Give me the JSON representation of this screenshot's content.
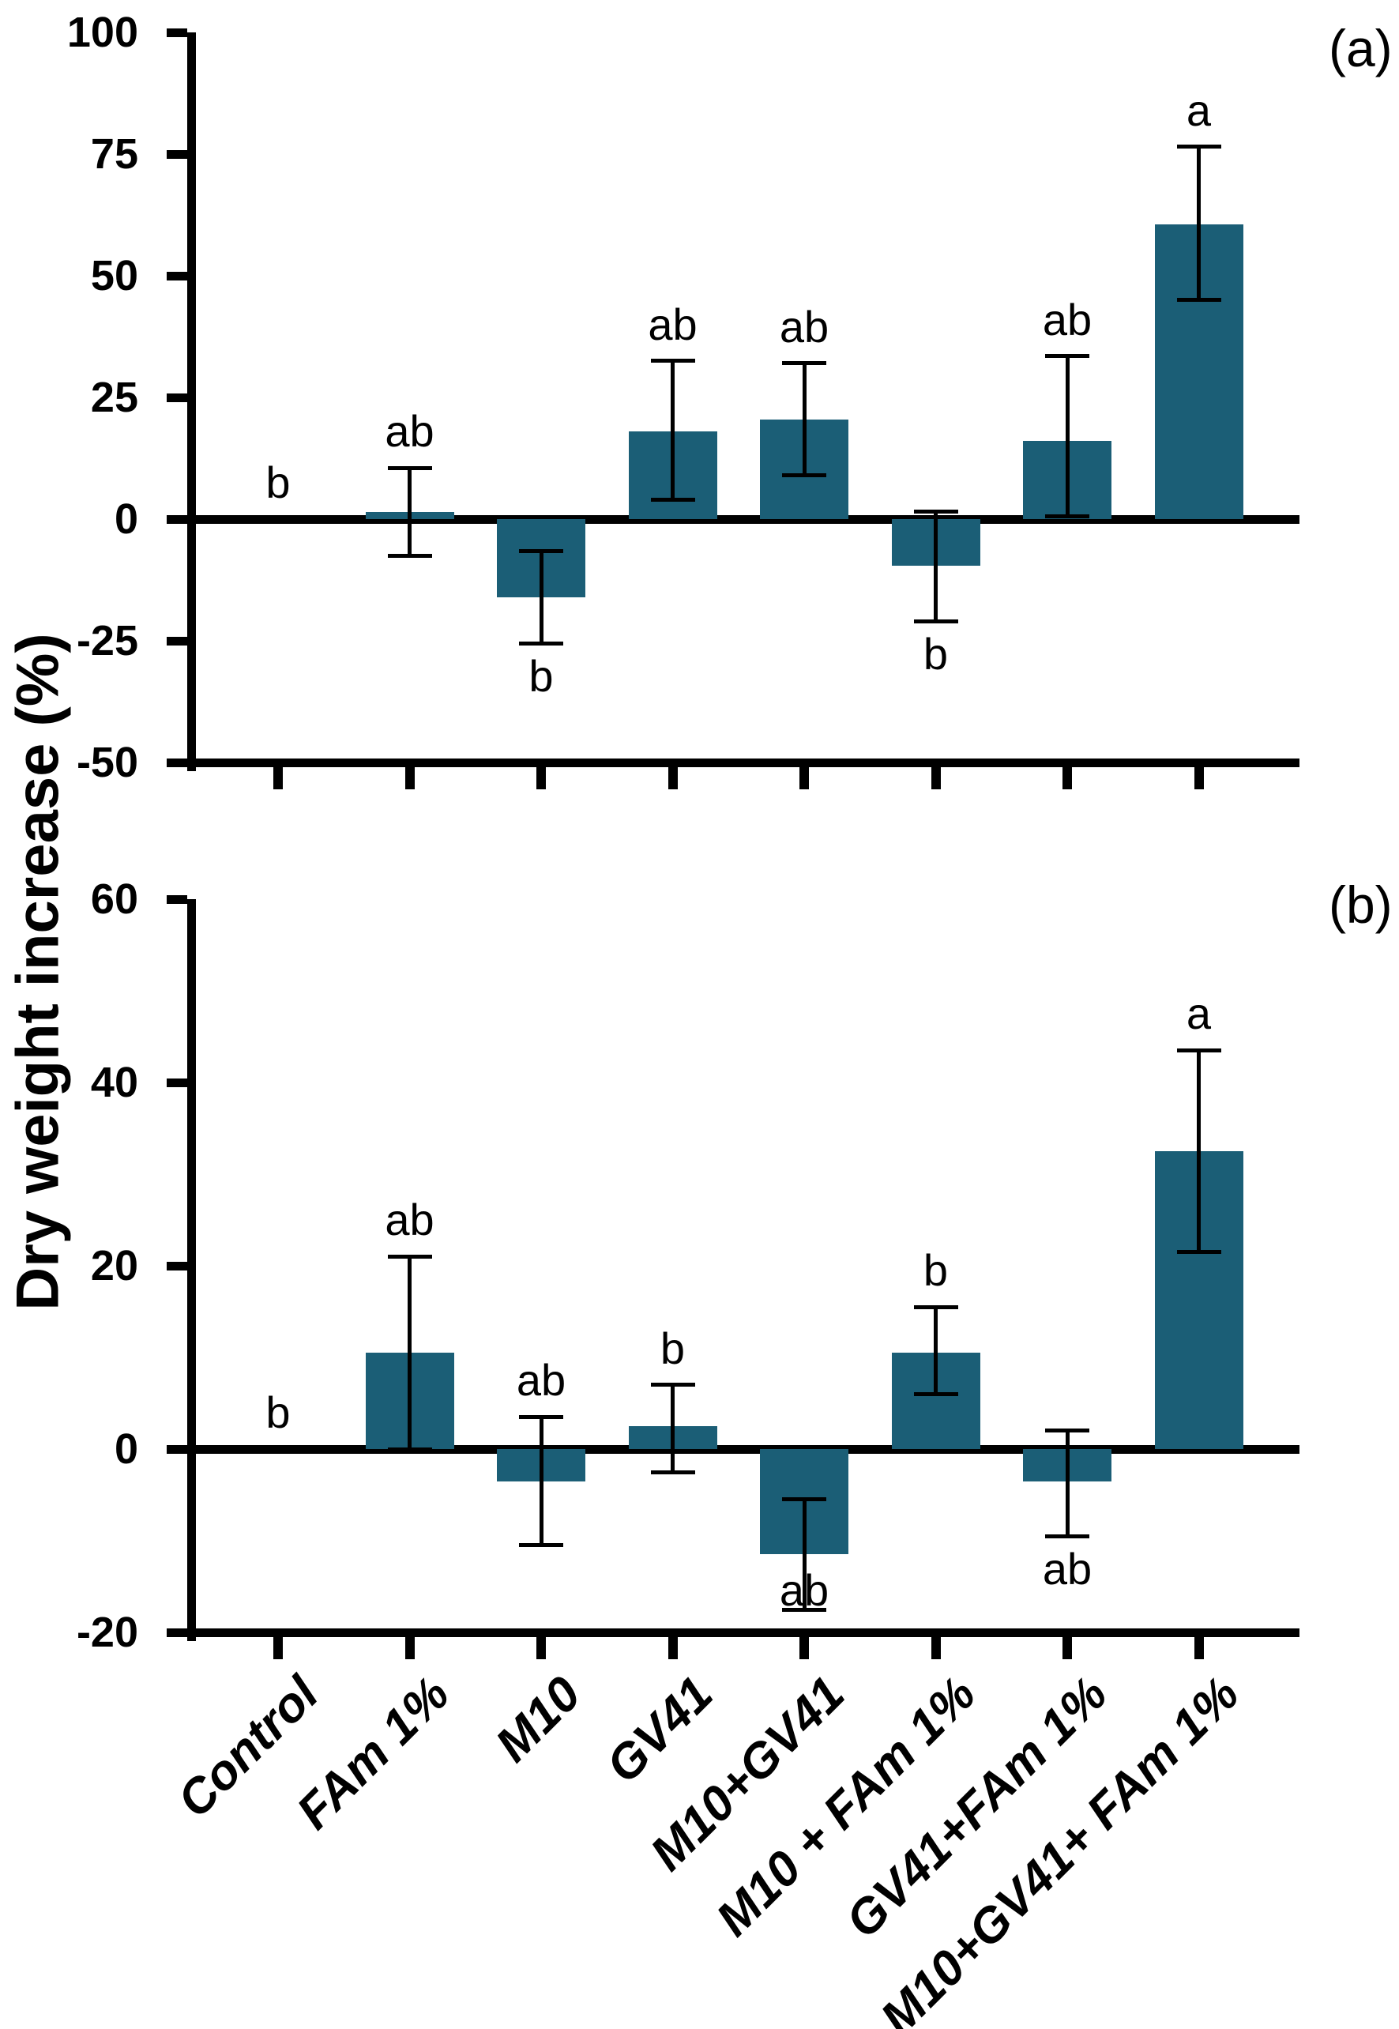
{
  "figure": {
    "y_axis_label": "Dry weight increase (%)",
    "bar_color": "#1b5e76",
    "axis_color": "#000000",
    "categories": [
      "Control",
      "FAm 1%",
      "M10",
      "GV41",
      "M10+GV41",
      "M10 + FAm 1%",
      "GV41+FAm 1%",
      "M10+GV41+ FAm 1%"
    ]
  },
  "chart_data": [
    {
      "type": "bar",
      "panel_label": "(a)",
      "ylabel": "Dry weight increase (%)",
      "ylim": [
        -50,
        100
      ],
      "yticks": [
        100,
        75,
        50,
        25,
        0,
        -25,
        -50
      ],
      "grid": false,
      "categories": [
        "Control",
        "FAm 1%",
        "M10",
        "GV41",
        "M10+GV41",
        "M10 + FAm 1%",
        "GV41+FAm 1%",
        "M10+GV41+ FAm 1%"
      ],
      "values": [
        0,
        1.5,
        -16,
        18,
        20.5,
        -9.5,
        16,
        60.5
      ],
      "error_low": [
        null,
        -7.5,
        -25.5,
        4,
        9,
        -21,
        0.5,
        45
      ],
      "error_high": [
        null,
        10.5,
        -6.5,
        32.5,
        32,
        1.5,
        33.5,
        76.5
      ],
      "sig_letters": [
        "b",
        "ab",
        "b",
        "ab",
        "ab",
        "b",
        "ab",
        "a"
      ],
      "letter_side": [
        "baseline",
        "above",
        "below",
        "above",
        "above",
        "below",
        "above",
        "above"
      ],
      "letter_dy": [
        0,
        0,
        0,
        0,
        0,
        0,
        0,
        0
      ]
    },
    {
      "type": "bar",
      "panel_label": "(b)",
      "ylabel": "Dry weight increase (%)",
      "ylim": [
        -20,
        60
      ],
      "yticks": [
        60,
        40,
        20,
        0,
        -20
      ],
      "grid": false,
      "categories": [
        "Control",
        "FAm 1%",
        "M10",
        "GV41",
        "M10+GV41",
        "M10 + FAm 1%",
        "GV41+FAm 1%",
        "M10+GV41+ FAm 1%"
      ],
      "values": [
        0,
        10.5,
        -3.5,
        2.5,
        -11.5,
        10.5,
        -3.5,
        32.5
      ],
      "error_low": [
        null,
        0,
        -10.5,
        -2.5,
        -17.5,
        6,
        -9.5,
        21.5
      ],
      "error_high": [
        null,
        21,
        3.5,
        7,
        -5.5,
        15.5,
        2,
        43.5
      ],
      "sig_letters": [
        "b",
        "ab",
        "ab",
        "b",
        "ab",
        "b",
        "ab",
        "a"
      ],
      "letter_side": [
        "baseline",
        "above",
        "above",
        "above",
        "below",
        "above",
        "below",
        "above"
      ],
      "letter_dy": [
        0,
        0,
        0,
        0,
        -66,
        0,
        0,
        0
      ]
    }
  ]
}
